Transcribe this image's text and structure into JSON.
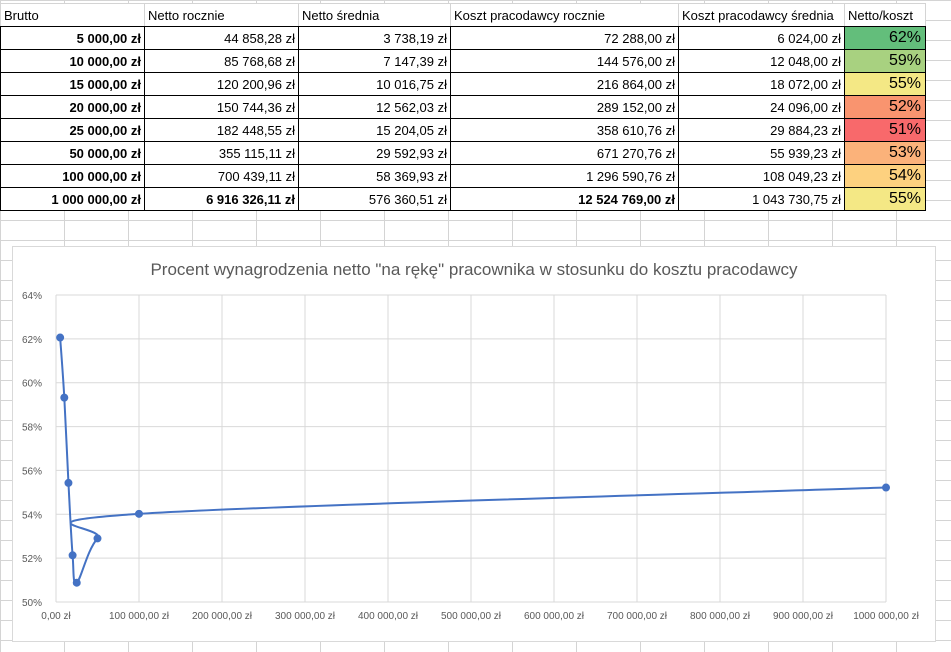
{
  "table": {
    "headers": [
      "Brutto",
      "Netto rocznie",
      "Netto średnia",
      "Koszt pracodawcy rocznie",
      "Koszt pracodawcy średnia",
      "Netto/koszt"
    ],
    "rows": [
      {
        "brutto": "5 000,00 zł",
        "netto_rocznie": "44 858,28 zł",
        "netto_srednia": "3 738,19 zł",
        "koszt_rocznie": "72 288,00 zł",
        "koszt_srednia": "6 024,00 zł",
        "ratio": "62%",
        "color": "#63be7b"
      },
      {
        "brutto": "10 000,00 zł",
        "netto_rocznie": "85 768,68 zł",
        "netto_srednia": "7 147,39 zł",
        "koszt_rocznie": "144 576,00 zł",
        "koszt_srednia": "12 048,00 zł",
        "ratio": "59%",
        "color": "#a8d180"
      },
      {
        "brutto": "15 000,00 zł",
        "netto_rocznie": "120 200,96 zł",
        "netto_srednia": "10 016,75 zł",
        "koszt_rocznie": "216 864,00 zł",
        "koszt_srednia": "18 072,00 zł",
        "ratio": "55%",
        "color": "#f4e885"
      },
      {
        "brutto": "20 000,00 zł",
        "netto_rocznie": "150 744,36 zł",
        "netto_srednia": "12 562,03 zł",
        "koszt_rocznie": "289 152,00 zł",
        "koszt_srednia": "24 096,00 zł",
        "ratio": "52%",
        "color": "#f9946f"
      },
      {
        "brutto": "25 000,00 zł",
        "netto_rocznie": "182 448,55 zł",
        "netto_srednia": "15 204,05 zł",
        "koszt_rocznie": "358 610,76 zł",
        "koszt_srednia": "29 884,23 zł",
        "ratio": "51%",
        "color": "#f8696b"
      },
      {
        "brutto": "50 000,00 zł",
        "netto_rocznie": "355 115,11 zł",
        "netto_srednia": "29 592,93 zł",
        "koszt_rocznie": "671 270,76 zł",
        "koszt_srednia": "55 939,23 zł",
        "ratio": "53%",
        "color": "#fbb27a"
      },
      {
        "brutto": "100 000,00 zł",
        "netto_rocznie": "700 439,11 zł",
        "netto_srednia": "58 369,93 zł",
        "koszt_rocznie": "1 296 590,76 zł",
        "koszt_srednia": "108 049,23 zł",
        "ratio": "54%",
        "color": "#fdd17f"
      },
      {
        "brutto": "1 000 000,00 zł",
        "netto_rocznie": "6 916 326,11 zł",
        "netto_srednia": "576 360,51 zł",
        "koszt_rocznie": "12 524 769,00 zł",
        "koszt_srednia": "1 043 730,75 zł",
        "ratio": "55%",
        "color": "#f4e885"
      }
    ]
  },
  "chart_data": {
    "type": "scatter",
    "title": "Procent wynagrodzenia netto \"na rękę\" pracownika w stosunku do kosztu pracodawcy",
    "xlabel": "",
    "ylabel": "",
    "x": [
      5000,
      10000,
      15000,
      20000,
      25000,
      50000,
      100000,
      1000000
    ],
    "y": [
      62.06,
      59.32,
      55.43,
      52.13,
      50.88,
      52.9,
      54.02,
      55.22
    ],
    "xlim": [
      0,
      1000000
    ],
    "ylim": [
      50,
      64
    ],
    "x_ticks": [
      0,
      100000,
      200000,
      300000,
      400000,
      500000,
      600000,
      700000,
      800000,
      900000,
      1000000
    ],
    "x_tick_labels": [
      "0,00 zł",
      "100 000,00 zł",
      "200 000,00 zł",
      "300 000,00 zł",
      "400 000,00 zł",
      "500 000,00 zł",
      "600 000,00 zł",
      "700 000,00 zł",
      "800 000,00 zł",
      "900 000,00 zł",
      "1000 000,00 zł"
    ],
    "y_ticks": [
      50,
      52,
      54,
      56,
      58,
      60,
      62,
      64
    ],
    "y_tick_labels": [
      "50%",
      "52%",
      "54%",
      "56%",
      "58%",
      "60%",
      "62%",
      "64%"
    ],
    "smoothed_line": true,
    "markers": true,
    "grid": true,
    "legend": "none",
    "line_color": "#4472c4",
    "grid_color": "#d9d9d9"
  }
}
